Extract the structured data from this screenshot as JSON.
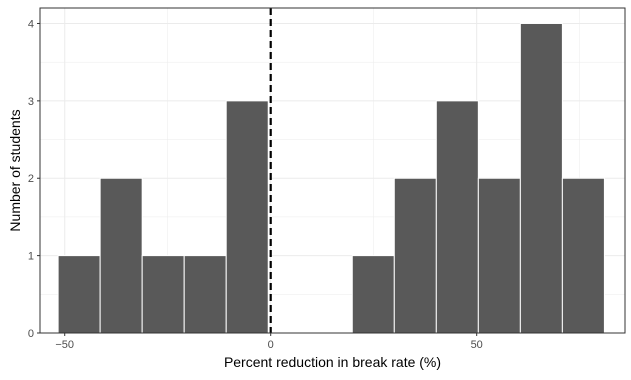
{
  "chart_data": {
    "type": "bar",
    "subtype": "histogram",
    "title": "",
    "xlabel": "Percent reduction in break rate (%)",
    "ylabel": "Number of students",
    "xlim": [
      -56,
      86
    ],
    "ylim": [
      0,
      4.2
    ],
    "x_ticks": [
      -50,
      0,
      50
    ],
    "x_tick_labels": [
      "−50",
      "0",
      "50"
    ],
    "y_ticks": [
      0,
      1,
      2,
      3,
      4
    ],
    "y_tick_labels": [
      "0",
      "1",
      "2",
      "3",
      "4"
    ],
    "bin_width": 10.2,
    "bins": [
      {
        "x0": -51.6,
        "x1": -41.4,
        "count": 1
      },
      {
        "x0": -41.4,
        "x1": -31.2,
        "count": 2
      },
      {
        "x0": -31.2,
        "x1": -21.0,
        "count": 1
      },
      {
        "x0": -21.0,
        "x1": -10.8,
        "count": 1
      },
      {
        "x0": -10.8,
        "x1": -0.6,
        "count": 3
      },
      {
        "x0": -0.6,
        "x1": 9.6,
        "count": 0
      },
      {
        "x0": 9.6,
        "x1": 19.8,
        "count": 0
      },
      {
        "x0": 19.8,
        "x1": 30.0,
        "count": 1
      },
      {
        "x0": 30.0,
        "x1": 40.2,
        "count": 2
      },
      {
        "x0": 40.2,
        "x1": 50.4,
        "count": 3
      },
      {
        "x0": 50.4,
        "x1": 60.6,
        "count": 2
      },
      {
        "x0": 60.6,
        "x1": 70.8,
        "count": 4
      },
      {
        "x0": 70.8,
        "x1": 81.0,
        "count": 2
      }
    ],
    "reference_line": {
      "x": 0,
      "style": "dashed"
    },
    "grid": true,
    "legend": "none",
    "colors": {
      "bar_fill": "#595959",
      "bar_edge": "#ffffff",
      "grid": "#ebebeb",
      "panel_border": "#333333",
      "reference_line": "#000000"
    }
  }
}
